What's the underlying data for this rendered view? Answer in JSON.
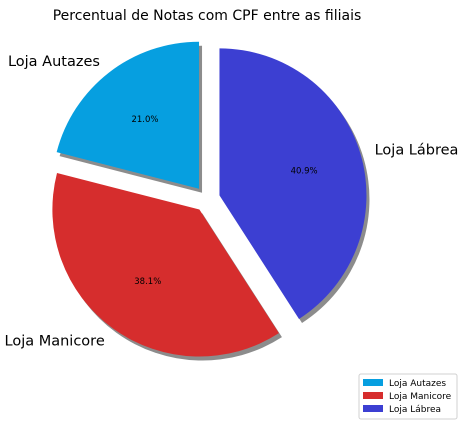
{
  "chart_data": {
    "type": "pie",
    "title": "Percentual de Notas com CPF entre as filiais",
    "slices": [
      {
        "label": "Loja Autazes",
        "percent": 21.0,
        "percent_label": "21.0%",
        "color": "#069fe0",
        "exploded": true
      },
      {
        "label": "Loja Manicore",
        "percent": 38.1,
        "percent_label": "38.1%",
        "color": "#d62d2d",
        "exploded": true
      },
      {
        "label": "Loja Lábrea",
        "percent": 40.9,
        "percent_label": "40.9%",
        "color": "#3c3fd2",
        "exploded": true
      }
    ],
    "start_angle_deg": 90,
    "direction": "counterclockwise",
    "shadow": true,
    "legend": {
      "placement": "bottom-right",
      "entries": [
        "Loja Autazes",
        "Loja Manicore",
        "Loja Lábrea"
      ]
    }
  }
}
